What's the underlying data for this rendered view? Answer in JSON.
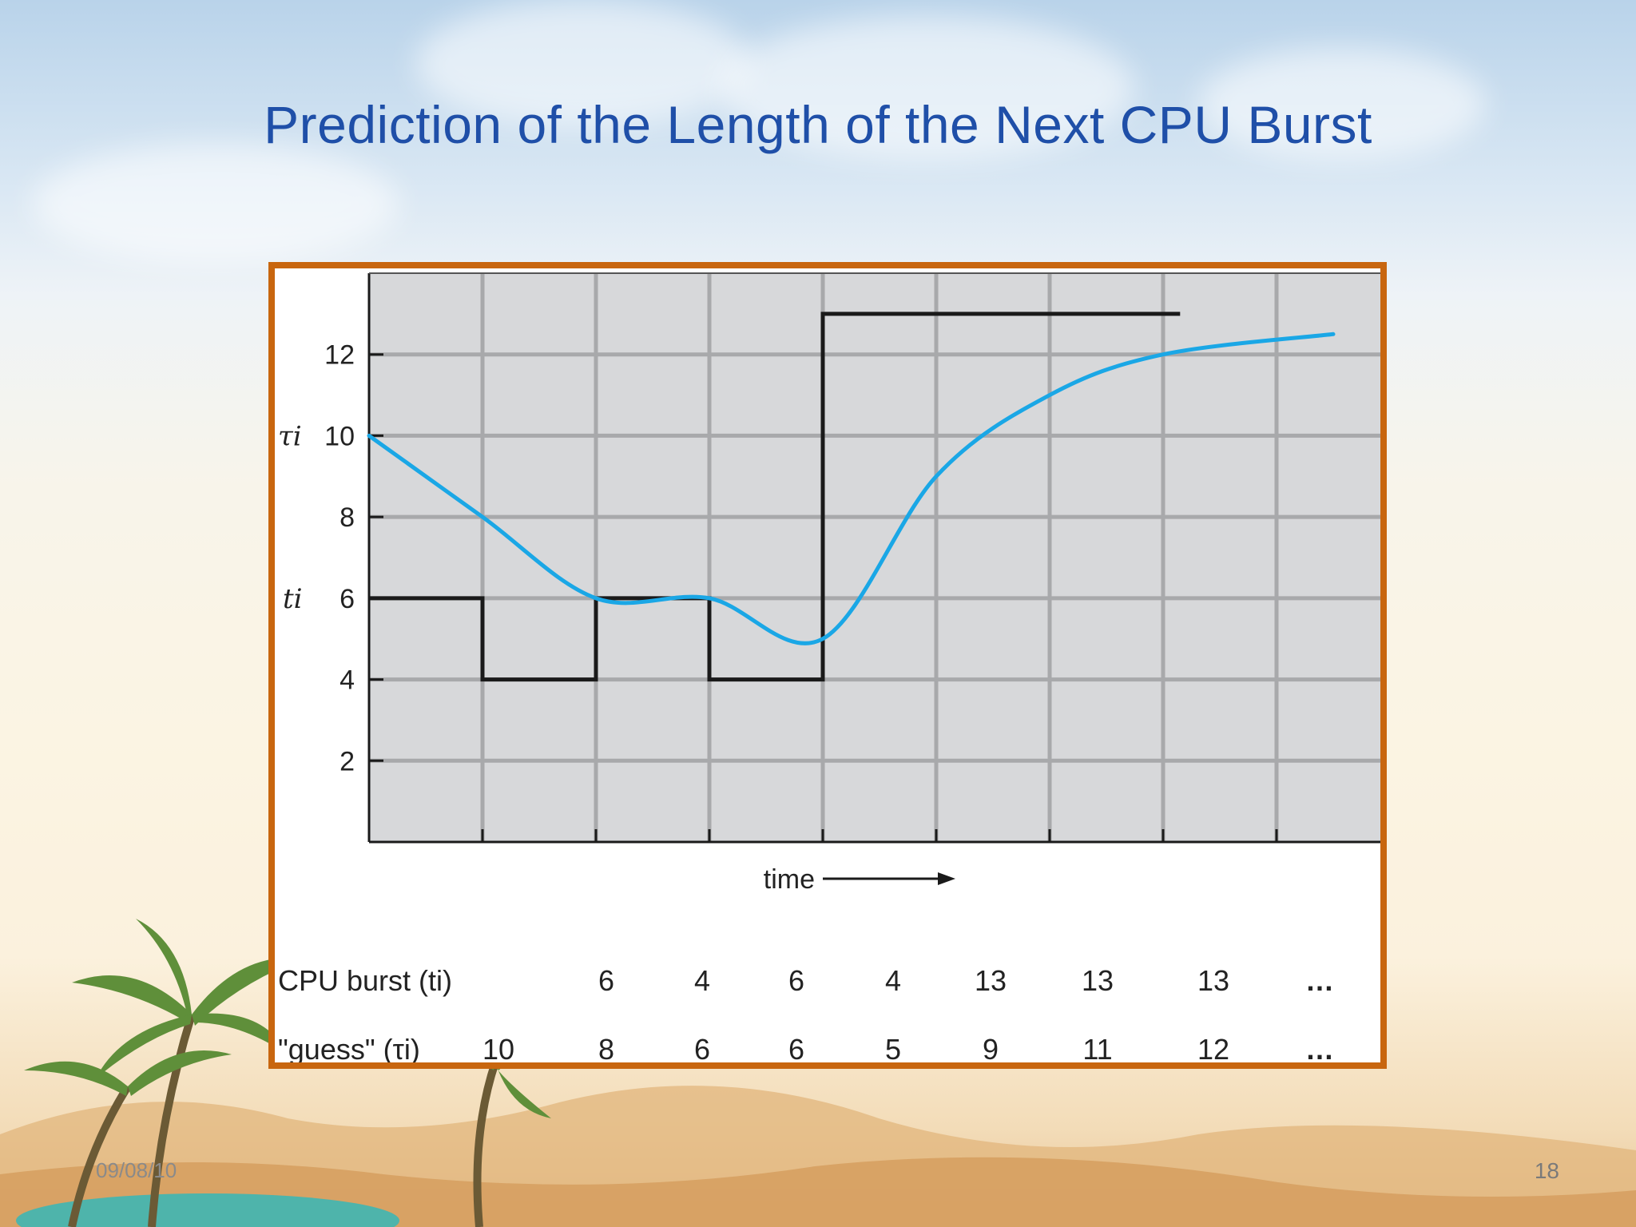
{
  "slide": {
    "title": "Prediction of the Length of the Next CPU Burst",
    "footer_date": "09/08/10",
    "page_number": "18"
  },
  "colors": {
    "title": "#1f4fa8",
    "frame": "#c8660f",
    "plot_bg": "#d7d8da",
    "grid": "#a8a9ab",
    "burst_line": "#1a1a1a",
    "guess_curve": "#1aa7e6"
  },
  "chart_data": {
    "type": "line",
    "title": "",
    "xlabel": "time",
    "ylabel_tau": "τi",
    "ylabel_t": "ti",
    "ylim": [
      0,
      14
    ],
    "y_ticks": [
      2,
      4,
      6,
      8,
      10,
      12
    ],
    "x_intervals": 9,
    "grid": true,
    "series": [
      {
        "name": "CPU burst (ti)",
        "style": "step",
        "values": [
          6,
          4,
          6,
          4,
          13,
          13,
          13
        ]
      },
      {
        "name": "\"guess\" (τi)",
        "style": "smooth",
        "values": [
          10,
          8,
          6,
          6,
          5,
          9,
          11,
          12
        ]
      }
    ],
    "table": {
      "rows": [
        {
          "label": "CPU burst (ti)",
          "values": [
            "6",
            "4",
            "6",
            "4",
            "13",
            "13",
            "13",
            "…"
          ]
        },
        {
          "label": "\"guess\" (τi)",
          "values": [
            "10",
            "8",
            "6",
            "6",
            "5",
            "9",
            "11",
            "12",
            "…"
          ]
        }
      ]
    }
  }
}
